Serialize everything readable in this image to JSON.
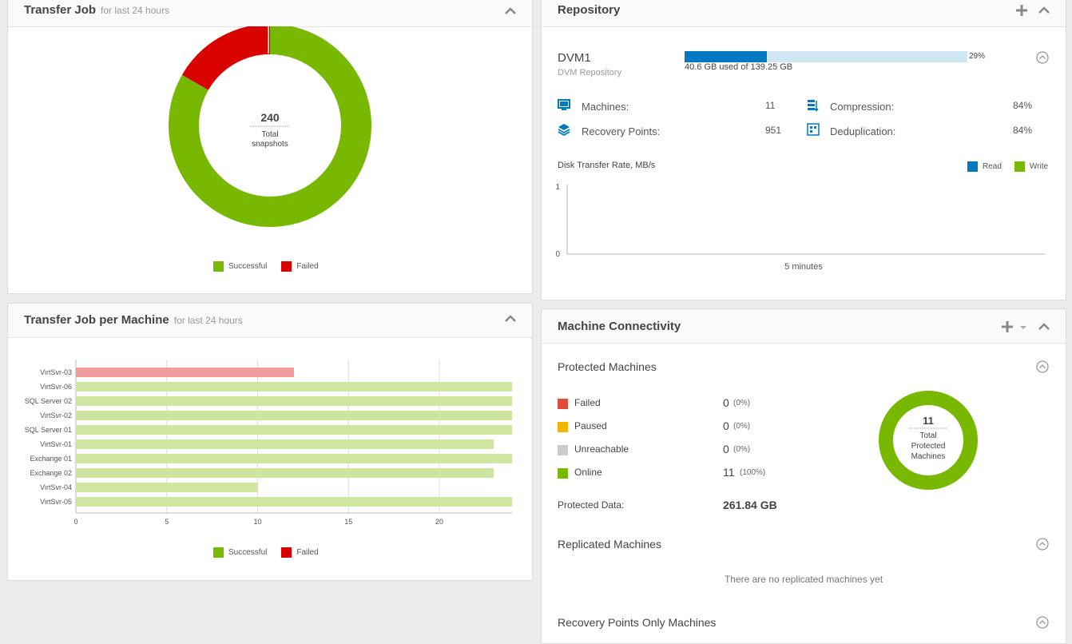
{
  "transfer_job": {
    "title": "Transfer Job",
    "subtitle": "for last 24 hours",
    "total": "240",
    "total_label_1": "Total",
    "total_label_2": "snapshots",
    "successful_fraction": 0.833,
    "legend_successful": "Successful",
    "legend_failed": "Failed"
  },
  "transfer_per_machine": {
    "title": "Transfer Job per Machine",
    "subtitle": "for last 24 hours",
    "legend_successful": "Successful",
    "legend_failed": "Failed",
    "chart_data": {
      "type": "bar",
      "orientation": "horizontal",
      "categories": [
        "VirtSvr-03",
        "VirtSvr-06",
        "SQL Server 02",
        "VirtSvr-02",
        "SQL Server 01",
        "VirtSvr-01",
        "Exchange 01",
        "Exchange 02",
        "VirtSvr-04",
        "VirtSvr-05"
      ],
      "values": [
        12,
        24,
        24,
        24,
        24,
        23,
        24,
        23,
        10,
        24
      ],
      "status": [
        "Failed",
        "Successful",
        "Successful",
        "Successful",
        "Successful",
        "Successful",
        "Successful",
        "Successful",
        "Successful",
        "Successful"
      ],
      "xticks": [
        "0",
        "5",
        "10",
        "15",
        "20"
      ],
      "xlim": [
        0,
        24
      ],
      "colors": {
        "Successful": "#cfe6a1",
        "Failed": "#f29b9b"
      }
    }
  },
  "repository": {
    "title": "Repository",
    "name": "DVM1",
    "type": "DVM Repository",
    "usage_text": "40.6 GB used of 139.25 GB",
    "usage_percent": "29%",
    "usage_fraction": 0.29,
    "machines_label": "Machines:",
    "machines_value": "11",
    "recovery_points_label": "Recovery Points:",
    "recovery_points_value": "951",
    "compression_label": "Compression:",
    "compression_value": "84%",
    "dedup_label": "Deduplication:",
    "dedup_value": "84%",
    "disk_rate_label": "Disk Transfer Rate, MB/s",
    "legend_read": "Read",
    "legend_write": "Write",
    "y_top": "1",
    "y_bottom": "0",
    "x_label": "5 minutes"
  },
  "connectivity": {
    "title": "Machine Connectivity",
    "protected_title": "Protected Machines",
    "rows": [
      {
        "label": "Failed",
        "count": "0",
        "pct": "(0%)",
        "color": "#e04c3c"
      },
      {
        "label": "Paused",
        "count": "0",
        "pct": "(0%)",
        "color": "#f5b400"
      },
      {
        "label": "Unreachable",
        "count": "0",
        "pct": "(0%)",
        "color": "#cccccc"
      },
      {
        "label": "Online",
        "count": "11",
        "pct": "(100%)",
        "color": "#78b800"
      }
    ],
    "protected_data_label": "Protected Data:",
    "protected_data_value": "261.84 GB",
    "total": "11",
    "total_label_1": "Total",
    "total_label_2": "Protected",
    "total_label_3": "Machines",
    "replicated_title": "Replicated Machines",
    "replicated_empty": "There are no replicated machines yet",
    "rp_only_title": "Recovery Points Only Machines"
  },
  "colors": {
    "green": "#78b800",
    "red": "#d90000",
    "blue": "#0079c1",
    "light_blue": "#cfe6f3"
  }
}
